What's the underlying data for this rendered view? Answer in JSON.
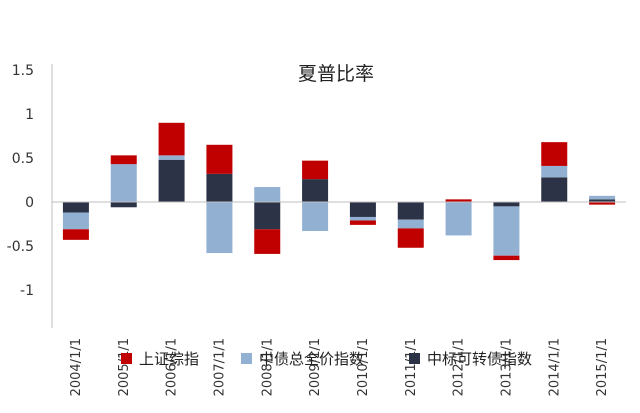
{
  "chart_data": {
    "type": "bar",
    "stacked": true,
    "title": "夏普比率",
    "xlabel": "",
    "ylabel": "",
    "categories": [
      "2004/1/1",
      "2005/1/1",
      "2006/1/1",
      "2007/1/1",
      "2008/1/1",
      "2009/1/1",
      "2010/1/1",
      "2011/1/1",
      "2012/1/1",
      "2013/1/1",
      "2014/1/1",
      "2015/1/1"
    ],
    "ylim": [
      -1.5,
      1.5
    ],
    "yticks": [
      "1.5",
      "1",
      "0.5",
      "0",
      "-0.5",
      "-1"
    ],
    "ytick_values": [
      1.5,
      1,
      0.5,
      0,
      -0.5,
      -1
    ],
    "grid": false,
    "legend_position": "bottom",
    "series": [
      {
        "name": "中标可转债指数",
        "color": "#2c3346",
        "values": [
          -0.12,
          -0.06,
          0.48,
          0.32,
          -0.31,
          0.26,
          -0.17,
          -0.2,
          0.0,
          -0.05,
          0.28,
          0.03
        ]
      },
      {
        "name": "中债总全价指数",
        "color": "#92b0d2",
        "values": [
          -0.19,
          0.43,
          0.05,
          -0.58,
          0.17,
          -0.33,
          -0.04,
          -0.1,
          -0.38,
          -0.56,
          0.13,
          0.04
        ]
      },
      {
        "name": "上证综指",
        "color": "#c00000",
        "values": [
          -0.12,
          0.1,
          0.37,
          0.33,
          -0.28,
          0.21,
          -0.05,
          -0.22,
          0.03,
          -0.05,
          0.27,
          -0.03
        ]
      }
    ],
    "legend_order": [
      "上证综指",
      "中债总全价指数",
      "中标可转债指数"
    ]
  }
}
